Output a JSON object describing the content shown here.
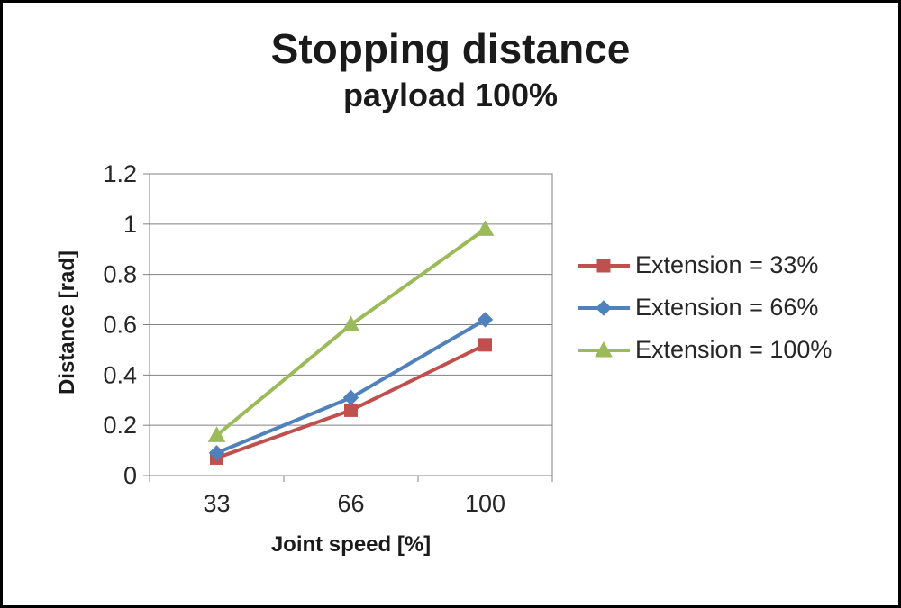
{
  "frame": {
    "background": "#ffffff",
    "border_color": "#000000"
  },
  "title": "Stopping distance",
  "subtitle": "payload 100%",
  "chart_data": {
    "type": "line",
    "categories": [
      33,
      66,
      100
    ],
    "x_tick_labels": [
      "33",
      "66",
      "100"
    ],
    "xlabel": "Joint speed [%]",
    "ylabel": "Distance [rad]",
    "ylim": [
      0,
      1.2
    ],
    "y_tick_step": 0.2,
    "y_tick_labels": [
      "0",
      "0.2",
      "0.4",
      "0.6",
      "0.8",
      "1",
      "1.2"
    ],
    "grid": true,
    "gridline_color": "#808080",
    "legend_position": "right",
    "series": [
      {
        "name": "Extension = 33%",
        "color": "#C0504D",
        "marker": "square",
        "values": [
          0.07,
          0.26,
          0.52
        ]
      },
      {
        "name": "Extension = 66%",
        "color": "#4F81BD",
        "marker": "diamond",
        "values": [
          0.09,
          0.31,
          0.62
        ]
      },
      {
        "name": "Extension = 100%",
        "color": "#9BBB59",
        "marker": "triangle",
        "values": [
          0.16,
          0.6,
          0.98
        ]
      }
    ]
  }
}
